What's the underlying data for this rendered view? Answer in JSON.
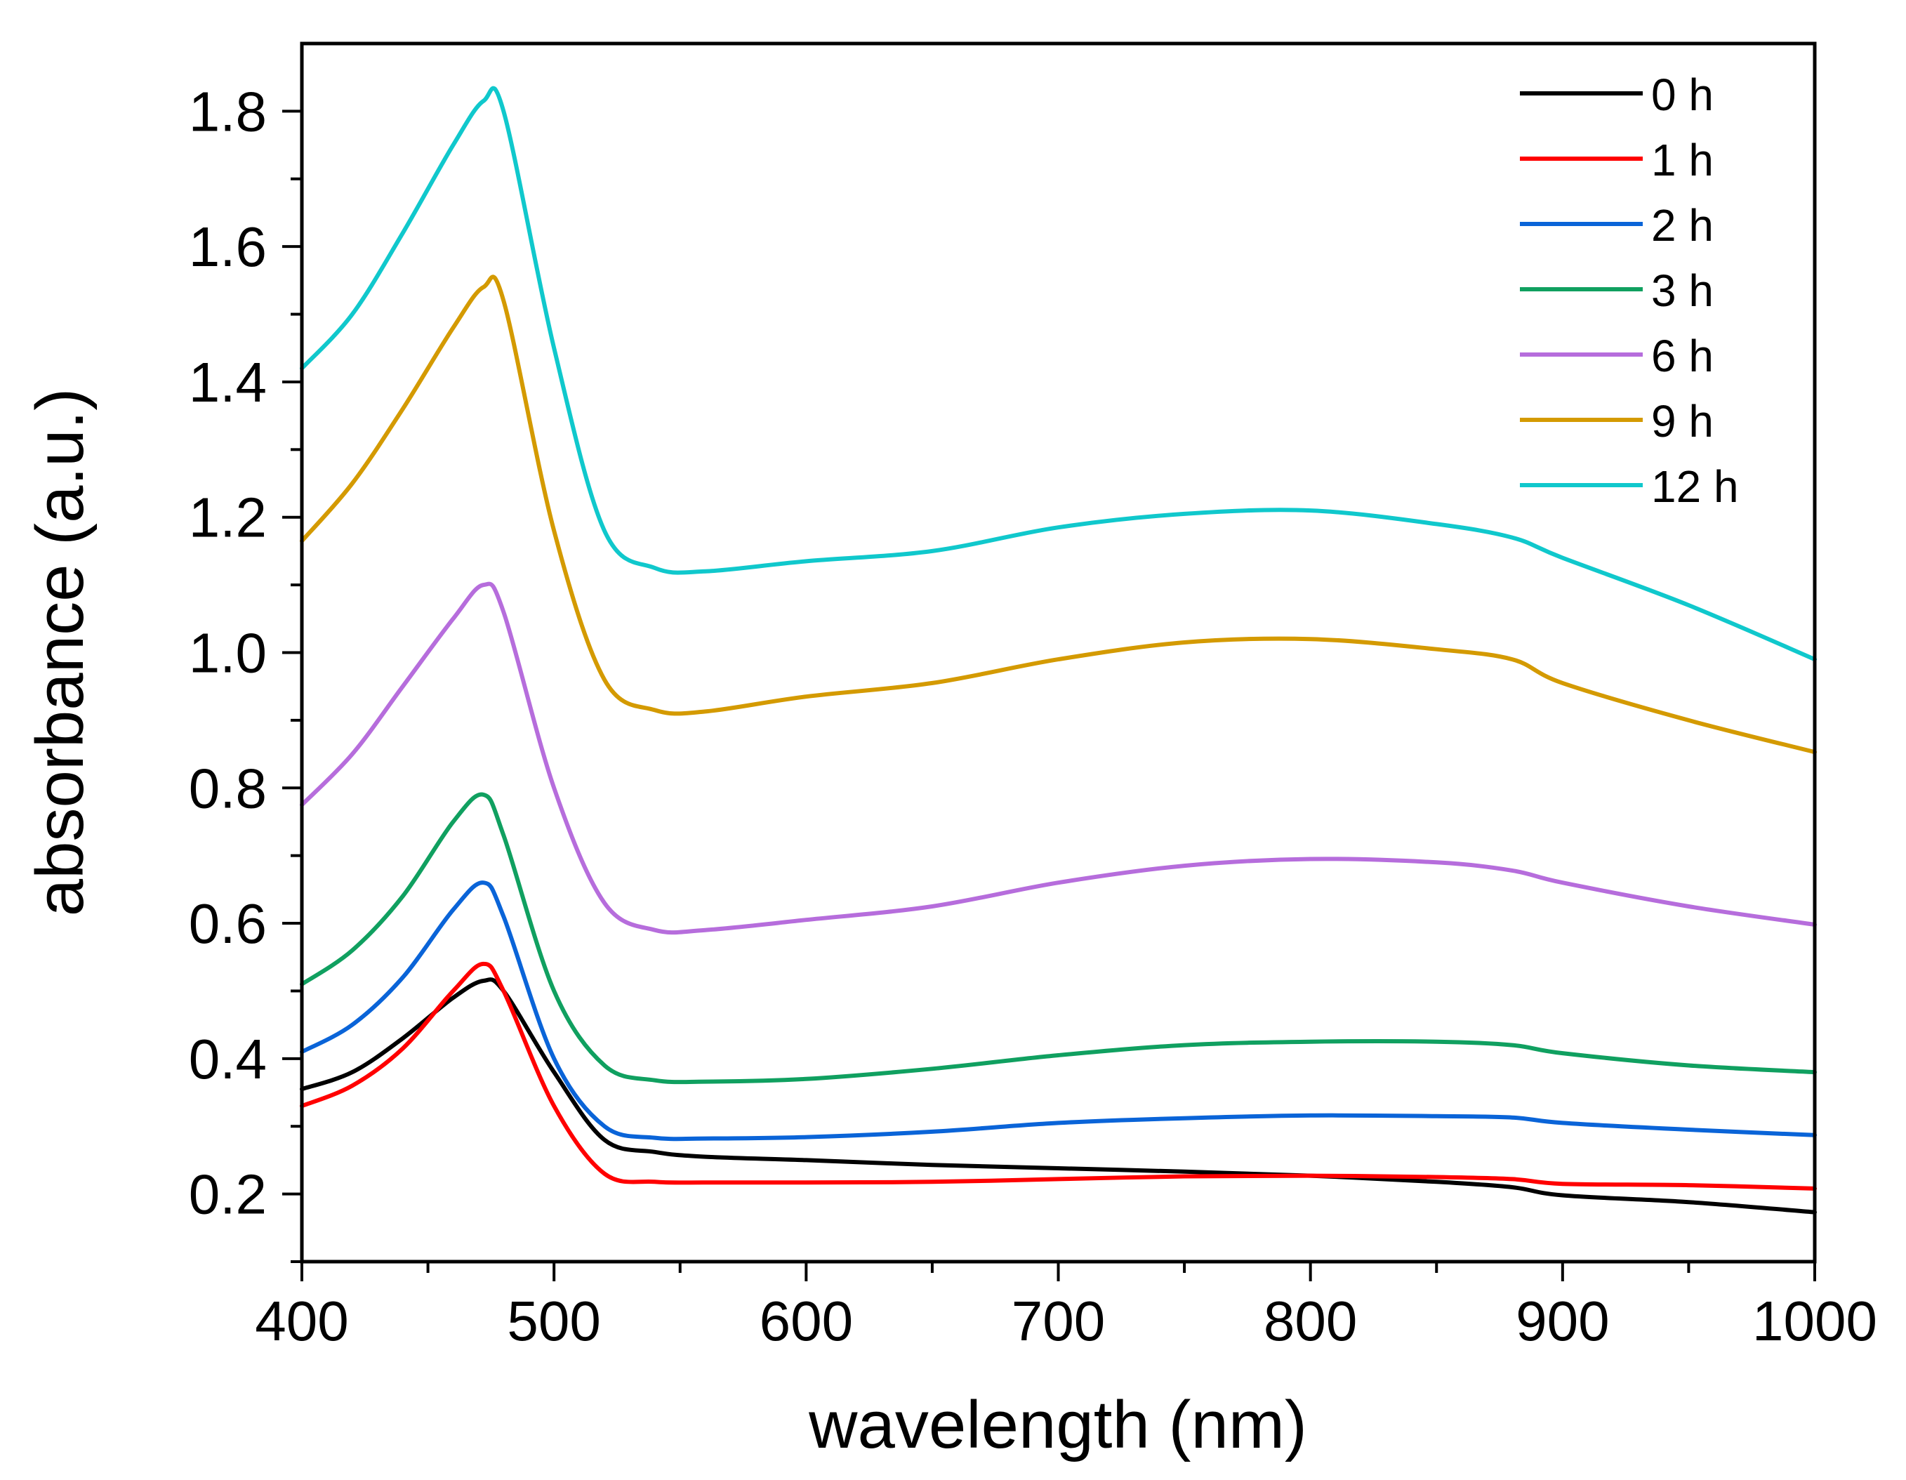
{
  "chart_data": {
    "type": "line",
    "title": "",
    "xlabel": "wavelength (nm)",
    "ylabel": "absorbance (a.u.)",
    "xlim": [
      400,
      1000
    ],
    "ylim": [
      0.1,
      1.9
    ],
    "x_ticks": [
      400,
      500,
      600,
      700,
      800,
      900,
      1000
    ],
    "y_ticks": [
      0.2,
      0.4,
      0.6,
      0.8,
      1.0,
      1.2,
      1.4,
      1.6,
      1.8
    ],
    "x_tick_labels": [
      "400",
      "500",
      "600",
      "700",
      "800",
      "900",
      "1000"
    ],
    "y_tick_labels": [
      "0.2",
      "0.4",
      "0.6",
      "0.8",
      "1.0",
      "1.2",
      "1.4",
      "1.6",
      "1.8"
    ],
    "grid": false,
    "legend_position": "top-right",
    "x": [
      400,
      420,
      440,
      460,
      472,
      480,
      500,
      520,
      540,
      560,
      600,
      650,
      700,
      750,
      800,
      850,
      880,
      900,
      950,
      1000
    ],
    "series": [
      {
        "name": "0 h",
        "color": "#000000",
        "values": [
          0.355,
          0.38,
          0.43,
          0.49,
          0.515,
          0.5,
          0.38,
          0.28,
          0.262,
          0.255,
          0.25,
          0.243,
          0.238,
          0.233,
          0.227,
          0.218,
          0.21,
          0.198,
          0.188,
          0.173
        ]
      },
      {
        "name": "1 h",
        "color": "#ff0000",
        "values": [
          0.33,
          0.36,
          0.415,
          0.5,
          0.54,
          0.5,
          0.33,
          0.23,
          0.218,
          0.217,
          0.217,
          0.218,
          0.222,
          0.226,
          0.227,
          0.225,
          0.222,
          0.215,
          0.213,
          0.208
        ]
      },
      {
        "name": "2 h",
        "color": "#0a64d8",
        "values": [
          0.41,
          0.45,
          0.52,
          0.62,
          0.66,
          0.61,
          0.4,
          0.3,
          0.283,
          0.282,
          0.284,
          0.292,
          0.305,
          0.312,
          0.316,
          0.315,
          0.313,
          0.305,
          0.295,
          0.287
        ]
      },
      {
        "name": "3 h",
        "color": "#10a060",
        "values": [
          0.51,
          0.56,
          0.64,
          0.75,
          0.79,
          0.73,
          0.5,
          0.39,
          0.368,
          0.366,
          0.37,
          0.385,
          0.405,
          0.42,
          0.425,
          0.425,
          0.42,
          0.408,
          0.39,
          0.38
        ]
      },
      {
        "name": "6 h",
        "color": "#b66ddc",
        "values": [
          0.775,
          0.85,
          0.95,
          1.05,
          1.1,
          1.06,
          0.8,
          0.63,
          0.59,
          0.59,
          0.605,
          0.625,
          0.66,
          0.685,
          0.695,
          0.69,
          0.678,
          0.66,
          0.625,
          0.598
        ]
      },
      {
        "name": "9 h",
        "color": "#d49a00",
        "values": [
          1.165,
          1.25,
          1.36,
          1.48,
          1.54,
          1.52,
          1.18,
          0.96,
          0.915,
          0.913,
          0.935,
          0.955,
          0.99,
          1.015,
          1.02,
          1.005,
          0.99,
          0.955,
          0.9,
          0.853
        ]
      },
      {
        "name": "12 h",
        "color": "#10c8cc",
        "values": [
          1.42,
          1.5,
          1.62,
          1.75,
          1.815,
          1.8,
          1.45,
          1.18,
          1.125,
          1.12,
          1.135,
          1.15,
          1.185,
          1.205,
          1.21,
          1.19,
          1.17,
          1.14,
          1.07,
          0.99
        ]
      }
    ]
  }
}
